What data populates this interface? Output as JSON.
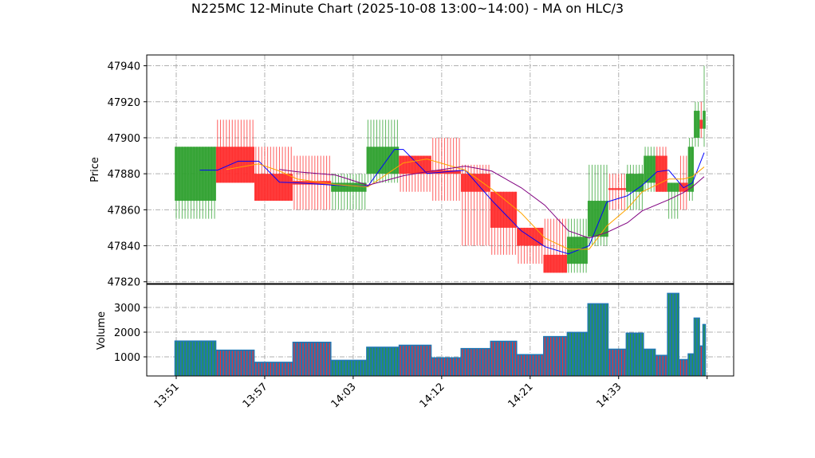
{
  "chart_data": {
    "title": "N225MC 12-Minute Chart (2025-10-08 13:00~14:00) - MA on HLC/3",
    "type": "candlestick",
    "price_panel": {
      "ylabel": "Price",
      "ylim": [
        47819,
        47946
      ],
      "yticks": [
        47820,
        47840,
        47860,
        47880,
        47900,
        47920,
        47940
      ],
      "grid": true
    },
    "volume_panel": {
      "ylabel": "Volume",
      "ylim": [
        226,
        3935
      ],
      "yticks": [
        1000,
        2000,
        3000
      ],
      "grid": true
    },
    "xlim": [
      -10,
      189
    ],
    "xticks": [
      {
        "index": 0,
        "label": "13:51"
      },
      {
        "index": 30,
        "label": "13:57"
      },
      {
        "index": 60,
        "label": "14:03"
      },
      {
        "index": 90,
        "label": "14:12"
      },
      {
        "index": 120,
        "label": "14:21"
      },
      {
        "index": 150,
        "label": "14:33"
      },
      {
        "index": 180,
        "label": ""
      }
    ],
    "colors": {
      "up": "#2ca02c",
      "down": "#ff2a2a",
      "volume": "#1f77b4",
      "ma_blue": "#0000ff",
      "ma_orange": "#ffa500",
      "ma_purple": "#800080",
      "grid": "#b0b0b0"
    },
    "candle_groups": [
      {
        "start": 0,
        "count": 14,
        "open": 47865,
        "high": 47895,
        "low": 47855,
        "close": 47895,
        "volume": 1650
      },
      {
        "start": 14,
        "count": 13,
        "open": 47895,
        "high": 47910,
        "low": 47875,
        "close": 47875,
        "volume": 1280
      },
      {
        "start": 27,
        "count": 13,
        "open": 47880,
        "high": 47895,
        "low": 47865,
        "close": 47865,
        "volume": 790
      },
      {
        "start": 40,
        "count": 13,
        "open": 47876,
        "high": 47890,
        "low": 47860,
        "close": 47874,
        "volume": 1600
      },
      {
        "start": 53,
        "count": 12,
        "open": 47870,
        "high": 47880,
        "low": 47860,
        "close": 47875,
        "volume": 870
      },
      {
        "start": 65,
        "count": 11,
        "open": 47880,
        "high": 47910,
        "low": 47875,
        "close": 47895,
        "volume": 1400
      },
      {
        "start": 76,
        "count": 11,
        "open": 47890,
        "high": 47890,
        "low": 47870,
        "close": 47880,
        "volume": 1480
      },
      {
        "start": 87,
        "count": 10,
        "open": 47882,
        "high": 47900,
        "low": 47865,
        "close": 47880,
        "volume": 970
      },
      {
        "start": 97,
        "count": 10,
        "open": 47880,
        "high": 47885,
        "low": 47840,
        "close": 47870,
        "volume": 1345
      },
      {
        "start": 107,
        "count": 9,
        "open": 47870,
        "high": 47870,
        "low": 47835,
        "close": 47850,
        "volume": 1640
      },
      {
        "start": 116,
        "count": 9,
        "open": 47850,
        "high": 47850,
        "low": 47830,
        "close": 47840,
        "volume": 1100
      },
      {
        "start": 125,
        "count": 8,
        "open": 47835,
        "high": 47855,
        "low": 47825,
        "close": 47825,
        "volume": 1830
      },
      {
        "start": 133,
        "count": 7,
        "open": 47830,
        "high": 47855,
        "low": 47825,
        "close": 47845,
        "volume": 2000
      },
      {
        "start": 140,
        "count": 7,
        "open": 47845,
        "high": 47885,
        "low": 47840,
        "close": 47865,
        "volume": 3160
      },
      {
        "start": 147,
        "count": 6,
        "open": 47872,
        "high": 47880,
        "low": 47860,
        "close": 47871,
        "volume": 1320
      },
      {
        "start": 153,
        "count": 6,
        "open": 47870,
        "high": 47885,
        "low": 47860,
        "close": 47880,
        "volume": 1970
      },
      {
        "start": 159,
        "count": 4,
        "open": 47875,
        "high": 47895,
        "low": 47870,
        "close": 47890,
        "volume": 1320
      },
      {
        "start": 163,
        "count": 4,
        "open": 47890,
        "high": 47895,
        "low": 47870,
        "close": 47870,
        "volume": 1070
      },
      {
        "start": 167,
        "count": 4,
        "open": 47870,
        "high": 47875,
        "low": 47855,
        "close": 47875,
        "volume": 3580
      },
      {
        "start": 171,
        "count": 3,
        "open": 47875,
        "high": 47890,
        "low": 47860,
        "close": 47870,
        "volume": 900
      },
      {
        "start": 174,
        "count": 2,
        "open": 47870,
        "high": 47900,
        "low": 47865,
        "close": 47895,
        "volume": 1130
      },
      {
        "start": 176,
        "count": 2,
        "open": 47900,
        "high": 47920,
        "low": 47895,
        "close": 47915,
        "volume": 2580
      },
      {
        "start": 178,
        "count": 1,
        "open": 47910,
        "high": 47920,
        "low": 47900,
        "close": 47905,
        "volume": 1450
      },
      {
        "start": 179,
        "count": 1,
        "open": 47905,
        "high": 47940,
        "low": 47895,
        "close": 47915,
        "volume": 2320
      }
    ],
    "ma_lines": [
      {
        "color": "#0000ff",
        "points": [
          [
            8,
            47882
          ],
          [
            14,
            47882
          ],
          [
            21,
            47887
          ],
          [
            28,
            47887
          ],
          [
            35,
            47875.3
          ],
          [
            41,
            47875
          ],
          [
            54,
            47873.6
          ],
          [
            65,
            47873.1
          ],
          [
            74,
            47893.5
          ],
          [
            77,
            47893.5
          ],
          [
            85,
            47880.2
          ],
          [
            98,
            47882
          ],
          [
            107,
            47865.2
          ],
          [
            117,
            47848.3
          ],
          [
            125,
            47839.5
          ],
          [
            133,
            47835.5
          ],
          [
            140,
            47840
          ],
          [
            146,
            47864.3
          ],
          [
            153,
            47867.8
          ],
          [
            158,
            47873.6
          ],
          [
            163,
            47881.1
          ],
          [
            167,
            47882
          ],
          [
            172,
            47872.2
          ],
          [
            175,
            47874.9
          ],
          [
            179,
            47891.7
          ]
        ]
      },
      {
        "color": "#ffa500",
        "points": [
          [
            17,
            47882.4
          ],
          [
            28,
            47885.5
          ],
          [
            35,
            47881.5
          ],
          [
            41,
            47877.1
          ],
          [
            54,
            47874
          ],
          [
            65,
            47872.7
          ],
          [
            77,
            47886
          ],
          [
            85,
            47888.2
          ],
          [
            98,
            47882
          ],
          [
            107,
            47871.4
          ],
          [
            117,
            47858.1
          ],
          [
            125,
            47844.3
          ],
          [
            133,
            47838.1
          ],
          [
            140,
            47838.1
          ],
          [
            146,
            47851
          ],
          [
            153,
            47860.7
          ],
          [
            158,
            47870
          ],
          [
            167,
            47877.1
          ],
          [
            172,
            47877.1
          ],
          [
            175,
            47878.4
          ],
          [
            179,
            47883.8
          ]
        ]
      },
      {
        "color": "#800080",
        "points": [
          [
            35,
            47882.4
          ],
          [
            41,
            47881.1
          ],
          [
            54,
            47879.3
          ],
          [
            65,
            47873.6
          ],
          [
            77,
            47878.9
          ],
          [
            85,
            47881.1
          ],
          [
            98,
            47884.2
          ],
          [
            107,
            47881.5
          ],
          [
            117,
            47872.2
          ],
          [
            125,
            47862.5
          ],
          [
            133,
            47848.3
          ],
          [
            140,
            47844.3
          ],
          [
            146,
            47847.4
          ],
          [
            153,
            47852.8
          ],
          [
            158,
            47859.4
          ],
          [
            167,
            47865.6
          ],
          [
            172,
            47869.6
          ],
          [
            175,
            47872.7
          ],
          [
            179,
            47878.4
          ]
        ]
      }
    ]
  }
}
